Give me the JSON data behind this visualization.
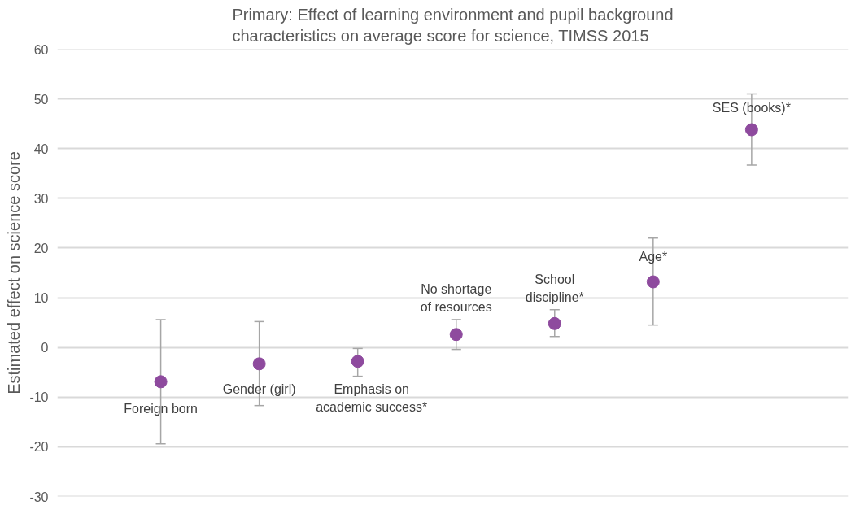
{
  "chart_data": {
    "type": "scatter",
    "title": "Primary: Effect of learning environment and pupil background\ncharacteristics on average score for science, TIMSS 2015",
    "ylabel": "Estimated effect on science score",
    "categories": [
      "Foreign born",
      "Gender (girl)",
      "Emphasis on\nacademic success*",
      "No shortage\nof resources",
      "School\ndiscipline*",
      "Age*",
      "SES (books)*"
    ],
    "series": [
      {
        "color": "#8e4a9e",
        "values": [
          -6.9,
          -3.3,
          -2.8,
          2.6,
          4.8,
          13.2,
          43.8
        ],
        "errors": [
          [
            -19.4,
            5.6
          ],
          [
            -11.7,
            5.2
          ],
          [
            -5.8,
            -0.2
          ],
          [
            -0.4,
            5.6
          ],
          [
            2.2,
            7.6
          ],
          [
            4.5,
            22.0
          ],
          [
            36.7,
            51.0
          ]
        ]
      }
    ],
    "ylim": [
      -30,
      60
    ],
    "yticks": [
      -30,
      -20,
      -10,
      0,
      10,
      20,
      30,
      40,
      50,
      60
    ],
    "grid": "y",
    "tick_labels": "y",
    "marker": "circle"
  }
}
